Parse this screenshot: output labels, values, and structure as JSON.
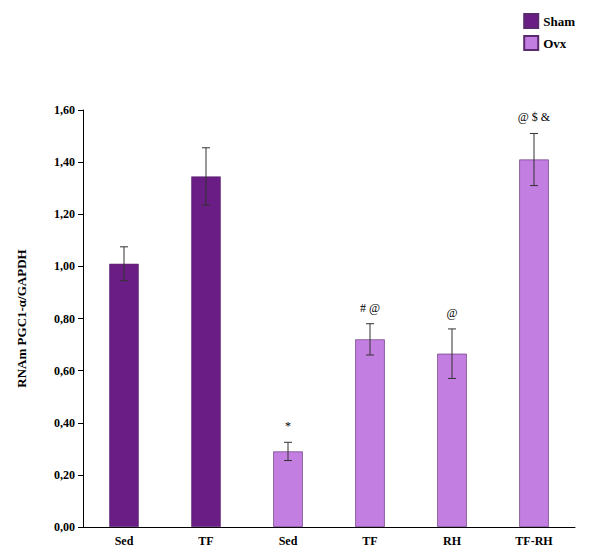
{
  "chart_data": {
    "type": "bar",
    "y_label": "RNAm PGC1-α/GAPDH",
    "categories": [
      "Sed",
      "TF",
      "Sed",
      "TF",
      "RH",
      "TF-RH"
    ],
    "series": [
      {
        "name": "Sham",
        "color": "#6a1d84",
        "values": [
          1.01,
          1.345,
          null,
          null,
          null,
          null
        ],
        "errors": [
          0.065,
          0.11,
          null,
          null,
          null,
          null
        ]
      },
      {
        "name": "Ovx",
        "color": "#c27ee0",
        "values": [
          null,
          null,
          0.29,
          0.72,
          0.665,
          1.41
        ],
        "errors": [
          null,
          null,
          0.035,
          0.06,
          0.095,
          0.1
        ],
        "annotations": [
          null,
          null,
          "*",
          "# @",
          "@",
          "@ $ &"
        ]
      }
    ],
    "ylim": [
      0,
      1.6
    ],
    "yticks": [
      {
        "value": 0,
        "label": "0,00"
      },
      {
        "value": 0.2,
        "label": "0,20"
      },
      {
        "value": 0.4,
        "label": "0,40"
      },
      {
        "value": 0.6,
        "label": "0,60"
      },
      {
        "value": 0.8,
        "label": "0,80"
      },
      {
        "value": 1.0,
        "label": "1,00"
      },
      {
        "value": 1.2,
        "label": "1,20"
      },
      {
        "value": 1.4,
        "label": "1,40"
      },
      {
        "value": 1.6,
        "label": "1,60"
      }
    ],
    "grid": false,
    "legend": "upper right",
    "data_labels": false
  }
}
